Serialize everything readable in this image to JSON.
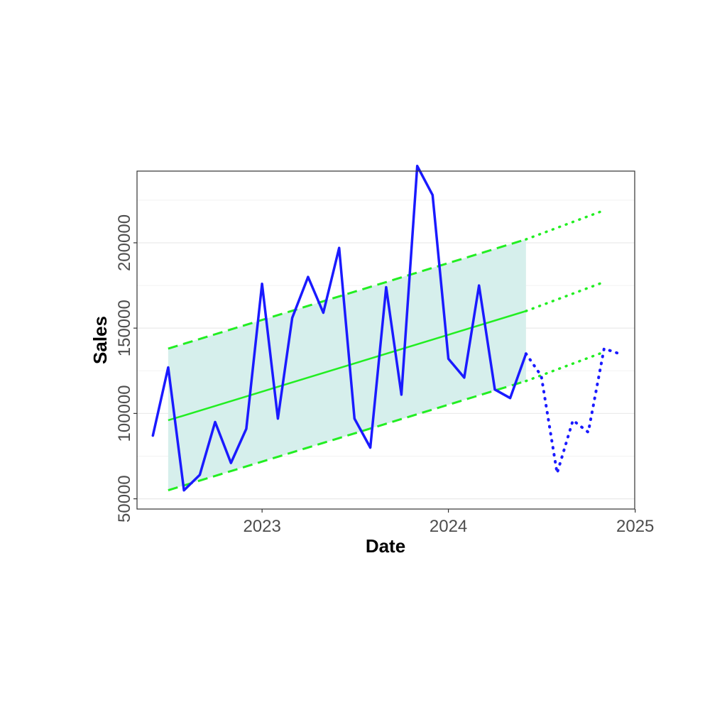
{
  "chart_data": {
    "type": "line",
    "title": "",
    "xlabel": "Date",
    "ylabel": "Sales",
    "x_axis": {
      "type": "date",
      "range": [
        "2022-05-01",
        "2024-12-31"
      ],
      "ticks": [
        {
          "value": "2023-01-01",
          "label": "2023"
        },
        {
          "value": "2024-01-01",
          "label": "2024"
        },
        {
          "value": "2025-01-01",
          "label": "2025"
        }
      ]
    },
    "y_axis": {
      "range": [
        44000,
        242000
      ],
      "ticks": [
        {
          "value": 50000,
          "label": "50000"
        },
        {
          "value": 100000,
          "label": "100000"
        },
        {
          "value": 150000,
          "label": "150000"
        },
        {
          "value": 200000,
          "label": "200000"
        }
      ]
    },
    "grid": true,
    "legend": "none",
    "series": [
      {
        "style": "solid",
        "color": "#1a1aff",
        "x": [
          "2022-06-01",
          "2022-07-01",
          "2022-08-01",
          "2022-09-01",
          "2022-10-01",
          "2022-11-01",
          "2022-12-01",
          "2023-01-01",
          "2023-02-01",
          "2023-03-01",
          "2023-04-01",
          "2023-05-01",
          "2023-06-01",
          "2023-07-01",
          "2023-08-01",
          "2023-09-01",
          "2023-10-01",
          "2023-11-01",
          "2023-12-01",
          "2024-01-01",
          "2024-02-01",
          "2024-03-01",
          "2024-04-01",
          "2024-05-01",
          "2024-06-01"
        ],
        "y": [
          87000,
          127000,
          55000,
          64000,
          95000,
          71000,
          91000,
          176000,
          97000,
          156000,
          180000,
          159000,
          197000,
          97000,
          80000,
          174000,
          111000,
          245000,
          228000,
          132000,
          121000,
          175000,
          114000,
          109000,
          135000
        ]
      },
      {
        "style": "dotted",
        "color": "#1a1aff",
        "x": [
          "2024-06-01",
          "2024-07-01",
          "2024-08-01",
          "2024-09-01",
          "2024-10-01",
          "2024-11-01",
          "2024-12-01"
        ],
        "y": [
          135000,
          122000,
          65000,
          96000,
          89000,
          138000,
          135000
        ]
      }
    ],
    "trend": {
      "color": "#22ee22",
      "band_fill": "#d6efec",
      "x": [
        "2022-07-01",
        "2024-06-01"
      ],
      "center": [
        96000,
        160000
      ],
      "lower": [
        55000,
        119000
      ],
      "upper": [
        138000,
        202000
      ],
      "forecast_x": [
        "2024-06-01",
        "2024-11-01"
      ],
      "forecast_center": [
        160000,
        177000
      ],
      "forecast_lower": [
        119000,
        136000
      ],
      "forecast_upper": [
        202000,
        219000
      ]
    }
  }
}
